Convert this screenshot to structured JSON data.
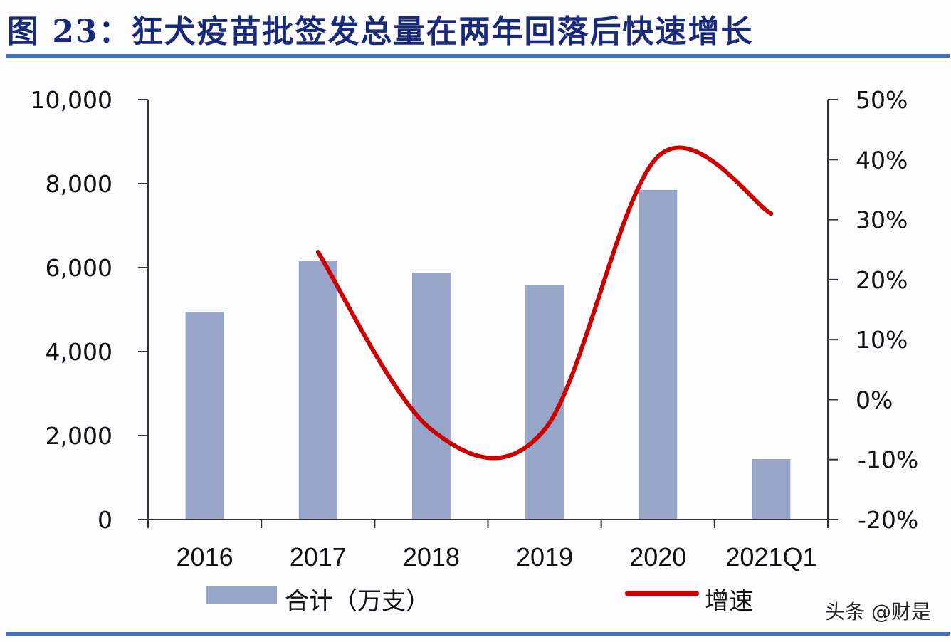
{
  "title": "图 23：狂犬疫苗批签发总量在两年回落后快速增长",
  "colors": {
    "bar": "#97a6c8",
    "line": "#cc0000",
    "title": "#1a2a7a",
    "rule": "#3f72c0"
  },
  "chart_data": {
    "type": "bar",
    "title": "图 23：狂犬疫苗批签发总量在两年回落后快速增长",
    "categories": [
      "2016",
      "2017",
      "2018",
      "2019",
      "2020",
      "2021Q1"
    ],
    "series": [
      {
        "name": "合计（万支）",
        "type": "bar",
        "axis": "left",
        "values": [
          4950,
          6170,
          5880,
          5590,
          7850,
          1440
        ]
      },
      {
        "name": "增速",
        "type": "line",
        "axis": "right",
        "values": [
          null,
          24.6,
          -5.0,
          -5.0,
          40.5,
          31.0
        ]
      }
    ],
    "left_axis": {
      "ylim": [
        0,
        10000
      ],
      "ticks": [
        "0",
        "2,000",
        "4,000",
        "6,000",
        "8,000",
        "10,000"
      ]
    },
    "right_axis": {
      "ylim": [
        -20,
        50
      ],
      "ticks": [
        "-20%",
        "-10%",
        "0%",
        "10%",
        "20%",
        "30%",
        "40%",
        "50%"
      ]
    },
    "legend": {
      "position": "bottom",
      "entries": [
        "合计（万支）",
        "增速"
      ]
    },
    "grid": false
  },
  "watermark": "头条 @财是"
}
